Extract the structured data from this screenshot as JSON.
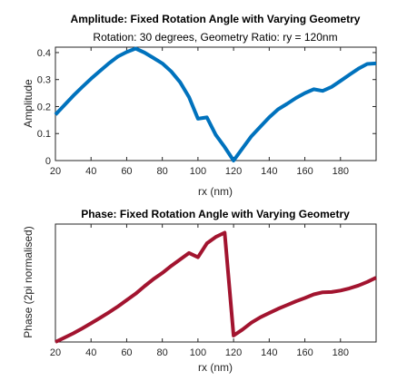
{
  "chart_data": [
    {
      "type": "line",
      "title": "Amplitude: Fixed Rotation Angle with Varying Geometry",
      "subtitle": "Rotation: 30 degrees, Geometry Ratio: ry = 120nm",
      "xlabel": "rx (nm)",
      "ylabel": "Amplitude",
      "xlim": [
        20,
        200
      ],
      "ylim": [
        0,
        0.42
      ],
      "xticks": [
        "20",
        "40",
        "60",
        "80",
        "100",
        "120",
        "140",
        "160",
        "180"
      ],
      "yticks": [
        "0",
        "0.1",
        "0.2",
        "0.3",
        "0.4"
      ],
      "grid": false,
      "color": "#0072BD",
      "series": [
        {
          "x": [
            20,
            25,
            30,
            35,
            40,
            45,
            50,
            55,
            60,
            65,
            70,
            75,
            80,
            85,
            90,
            95,
            100,
            105,
            110,
            115,
            120,
            125,
            130,
            135,
            140,
            145,
            150,
            155,
            160,
            165,
            170,
            175,
            180,
            185,
            190,
            195,
            200
          ],
          "values": [
            0.17,
            0.205,
            0.24,
            0.272,
            0.303,
            0.332,
            0.36,
            0.385,
            0.402,
            0.415,
            0.4,
            0.38,
            0.36,
            0.33,
            0.29,
            0.235,
            0.155,
            0.16,
            0.095,
            0.05,
            0.0,
            0.045,
            0.09,
            0.125,
            0.16,
            0.19,
            0.21,
            0.232,
            0.25,
            0.264,
            0.258,
            0.273,
            0.295,
            0.318,
            0.34,
            0.358,
            0.36
          ]
        }
      ]
    },
    {
      "type": "line",
      "title": "Phase: Fixed Rotation Angle with Varying Geometry",
      "xlabel": "rx (nm)",
      "ylabel": "Phase (2pi normalised)",
      "xlim": [
        20,
        200
      ],
      "ylim": [
        0,
        0.55
      ],
      "xticks": [
        "20",
        "40",
        "60",
        "80",
        "100",
        "120",
        "140",
        "160",
        "180"
      ],
      "yticks": [],
      "grid": false,
      "color": "#A2142F",
      "series": [
        {
          "x": [
            20,
            25,
            30,
            35,
            40,
            45,
            50,
            55,
            60,
            65,
            70,
            75,
            80,
            85,
            90,
            95,
            100,
            105,
            110,
            115,
            120,
            125,
            130,
            135,
            140,
            145,
            150,
            155,
            160,
            165,
            170,
            175,
            180,
            185,
            190,
            195,
            200
          ],
          "values": [
            0.0,
            0.02,
            0.04,
            0.063,
            0.087,
            0.112,
            0.138,
            0.165,
            0.195,
            0.225,
            0.26,
            0.293,
            0.322,
            0.355,
            0.385,
            0.415,
            0.395,
            0.46,
            0.49,
            0.51,
            0.03,
            0.058,
            0.09,
            0.115,
            0.135,
            0.155,
            0.172,
            0.19,
            0.205,
            0.222,
            0.232,
            0.233,
            0.24,
            0.25,
            0.263,
            0.28,
            0.3
          ]
        }
      ]
    }
  ]
}
